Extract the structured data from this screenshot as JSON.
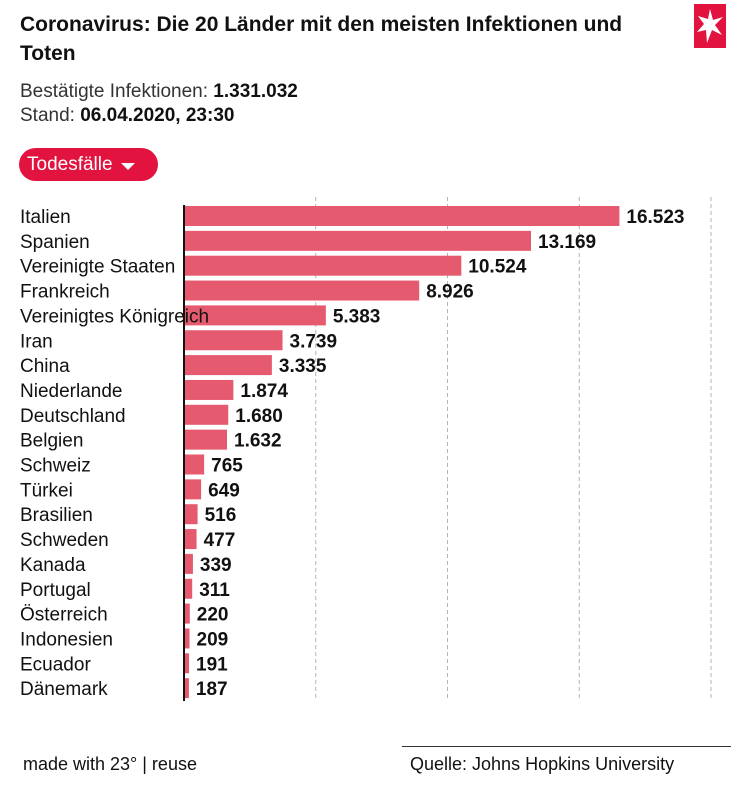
{
  "header": {
    "title": "Coronavirus: Die 20 Länder mit den meisten Infektionen und Toten",
    "infections_label": "Bestätigte Infektionen:",
    "infections_value": "1.331.032",
    "stand_label": "Stand:",
    "stand_value": "06.04.2020, 23:30",
    "logo_icon": "stern-star-icon"
  },
  "dropdown": {
    "selected": "Todesfälle"
  },
  "colors": {
    "bar": "#e65a70",
    "accent": "#e2133f",
    "grid": "#b3b3b3"
  },
  "chart_data": {
    "type": "bar",
    "orientation": "horizontal",
    "categories": [
      "Italien",
      "Spanien",
      "Vereinigte Staaten",
      "Frankreich",
      "Vereinigtes Königreich",
      "Iran",
      "China",
      "Niederlande",
      "Deutschland",
      "Belgien",
      "Schweiz",
      "Türkei",
      "Brasilien",
      "Schweden",
      "Kanada",
      "Portugal",
      "Österreich",
      "Indonesien",
      "Ecuador",
      "Dänemark"
    ],
    "values": [
      16523,
      13169,
      10524,
      8926,
      5383,
      3739,
      3335,
      1874,
      1680,
      1632,
      765,
      649,
      516,
      477,
      339,
      311,
      220,
      209,
      191,
      187
    ],
    "value_labels": [
      "16.523",
      "13.169",
      "10.524",
      "8.926",
      "5.383",
      "3.739",
      "3.335",
      "1.874",
      "1.680",
      "1.632",
      "765",
      "649",
      "516",
      "477",
      "339",
      "311",
      "220",
      "209",
      "191",
      "187"
    ],
    "xlim": [
      0,
      20000
    ],
    "grid_x": [
      5000,
      10000,
      15000,
      20000
    ],
    "grid_style": "dashed vertical"
  },
  "footer": {
    "made_with": "made with 23° | reuse",
    "source": "Quelle: Johns Hopkins University"
  }
}
